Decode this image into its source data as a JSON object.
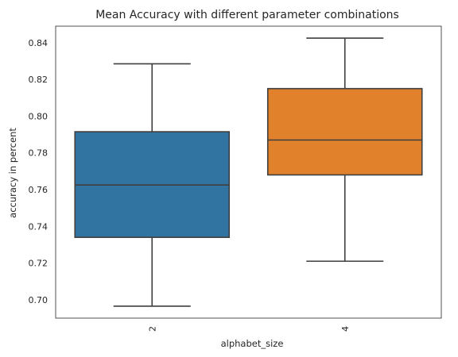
{
  "chart_data": {
    "type": "box",
    "title": "Mean Accuracy with different parameter combinations",
    "xlabel": "alphabet_size",
    "ylabel": "accuracy in percent",
    "categories": [
      "2",
      "4"
    ],
    "colors": [
      "#3274a1",
      "#e1812c"
    ],
    "ylim": [
      0.69,
      0.849
    ],
    "yticks": [
      "0.70",
      "0.72",
      "0.74",
      "0.76",
      "0.78",
      "0.80",
      "0.82",
      "0.84"
    ],
    "grid": false,
    "boxes": [
      {
        "category": "2",
        "whisker_low": 0.6965,
        "q1": 0.734,
        "median": 0.7625,
        "q3": 0.7915,
        "whisker_high": 0.8285
      },
      {
        "category": "4",
        "whisker_low": 0.721,
        "q1": 0.768,
        "median": 0.787,
        "q3": 0.815,
        "whisker_high": 0.8425
      }
    ]
  }
}
